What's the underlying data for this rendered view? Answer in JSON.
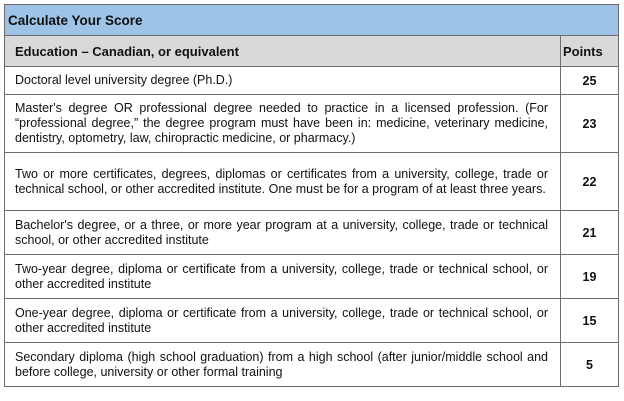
{
  "table": {
    "title": "Calculate Your Score",
    "headers": {
      "education": "Education – Canadian, or equivalent",
      "points": "Points"
    },
    "rows": [
      {
        "description": "Doctoral level university degree (Ph.D.)",
        "points": "25"
      },
      {
        "description": "Master's degree OR professional degree needed to practice in a licensed profession. (For “professional degree,” the degree program must have been in: medicine, veterinary medicine, dentistry, optometry, law, chiropractic medicine, or pharmacy.)",
        "points": "23"
      },
      {
        "description": "Two or more certificates, degrees, diplomas or certificates from a university, college, trade or technical school, or other accredited institute. One must be for a program of at least three years.",
        "points": "22"
      },
      {
        "description": "Bachelor's degree, or a three, or more year program at a university, college, trade or technical school, or other accredited institute",
        "points": "21"
      },
      {
        "description": "Two-year degree, diploma or certificate from a university, college, trade or technical school, or other accredited institute",
        "points": "19"
      },
      {
        "description": "One-year degree, diploma or certificate from a university, college, trade or technical school, or other accredited institute",
        "points": "15"
      },
      {
        "description": "Secondary diploma (high school graduation) from a high school (after junior/middle school and before college, university or other formal training",
        "points": "5"
      }
    ]
  },
  "colors": {
    "title_bg": "#9dc3e6",
    "header_bg": "#d9d9d9",
    "border": "#6d6d6d"
  }
}
